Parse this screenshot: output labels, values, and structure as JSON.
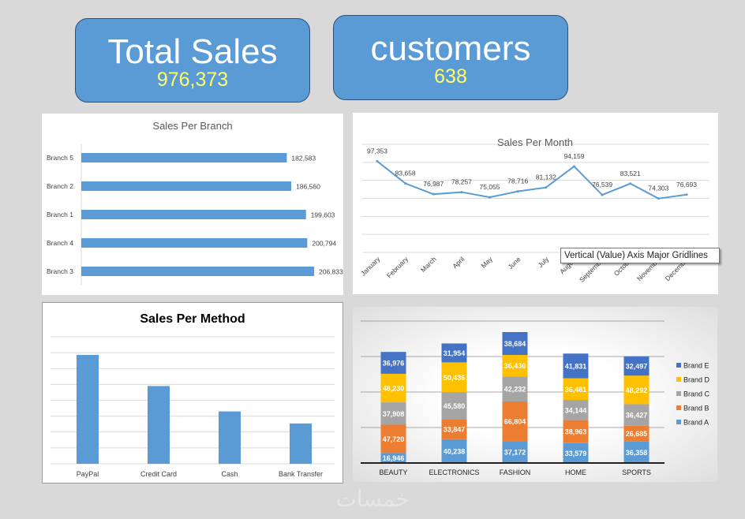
{
  "kpis": {
    "total_sales": {
      "label": "Total Sales",
      "value": "976,373"
    },
    "customers": {
      "label": "customers",
      "value": "638"
    }
  },
  "colors": {
    "background": "#d9d9d9",
    "kpi_fill": "#5b9bd5",
    "kpi_value": "#ffff66",
    "bar": "#5b9bd5",
    "brand_a": "#5b9bd5",
    "brand_b": "#ed7d31",
    "brand_c": "#a5a5a5",
    "brand_d": "#ffc000",
    "brand_e": "#4472c4"
  },
  "tooltip": "Vertical (Value) Axis Major Gridlines",
  "watermark": "خمسات",
  "chart_data": [
    {
      "id": "branch",
      "type": "bar",
      "orientation": "horizontal",
      "title": "Sales Per Branch",
      "categories": [
        "Branch 5",
        "Branch 2",
        "Branch 1",
        "Branch 4",
        "Branch 3"
      ],
      "values": [
        182583,
        186560,
        199603,
        200794,
        206833
      ],
      "labels": [
        "182,583",
        "186,560",
        "199,603",
        "200,794",
        "206,833"
      ],
      "grid": false
    },
    {
      "id": "month",
      "type": "line",
      "title": "Sales Per Month",
      "categories": [
        "January",
        "February",
        "March",
        "April",
        "May",
        "June",
        "July",
        "August",
        "September",
        "October",
        "November",
        "December"
      ],
      "values": [
        97353,
        83658,
        76987,
        78257,
        75055,
        78716,
        81132,
        94159,
        76539,
        83521,
        74303,
        76693
      ],
      "labels": [
        "97,353",
        "83,658",
        "76,987",
        "78,257",
        "75,055",
        "78,716",
        "81,132",
        "94,159",
        "76,539",
        "83,521",
        "74,303",
        "76,693"
      ],
      "grid": true
    },
    {
      "id": "method",
      "type": "bar",
      "title": "Sales Per Method",
      "categories": [
        "PayPal",
        "Credit Card",
        "Cash",
        "Bank Transfer"
      ],
      "values": [
        343000,
        245000,
        165000,
        127000
      ],
      "grid": true
    },
    {
      "id": "category",
      "type": "bar",
      "stacked": true,
      "categories": [
        "BEAUTY",
        "ELECTRONICS",
        "FASHION",
        "HOME",
        "SPORTS"
      ],
      "series": [
        {
          "name": "Brand A",
          "values": [
            16946,
            40238,
            37172,
            33579,
            36358
          ],
          "labels": [
            "16,946",
            "40,238",
            "37,172",
            "33,579",
            "36,358"
          ]
        },
        {
          "name": "Brand B",
          "values": [
            47720,
            33847,
            66804,
            38963,
            26685
          ],
          "labels": [
            "47,720",
            "33,847",
            "66,804",
            "38,963",
            "26,685"
          ]
        },
        {
          "name": "Brand C",
          "values": [
            37908,
            45580,
            42232,
            34144,
            36427
          ],
          "labels": [
            "37,908",
            "45,580",
            "42,232",
            "34,144",
            "36,427"
          ]
        },
        {
          "name": "Brand D",
          "values": [
            48230,
            50436,
            36430,
            36481,
            48292
          ],
          "labels": [
            "48,230",
            "50,436",
            "36,430",
            "36,481",
            "48,292"
          ]
        },
        {
          "name": "Brand E",
          "values": [
            36976,
            31954,
            38684,
            41831,
            32497
          ],
          "labels": [
            "36,976",
            "31,954",
            "38,684",
            "41,831",
            "32,497"
          ]
        }
      ],
      "legend_order": [
        "Brand E",
        "Brand D",
        "Brand C",
        "Brand B",
        "Brand A"
      ],
      "legend": "right",
      "grid": true
    }
  ]
}
